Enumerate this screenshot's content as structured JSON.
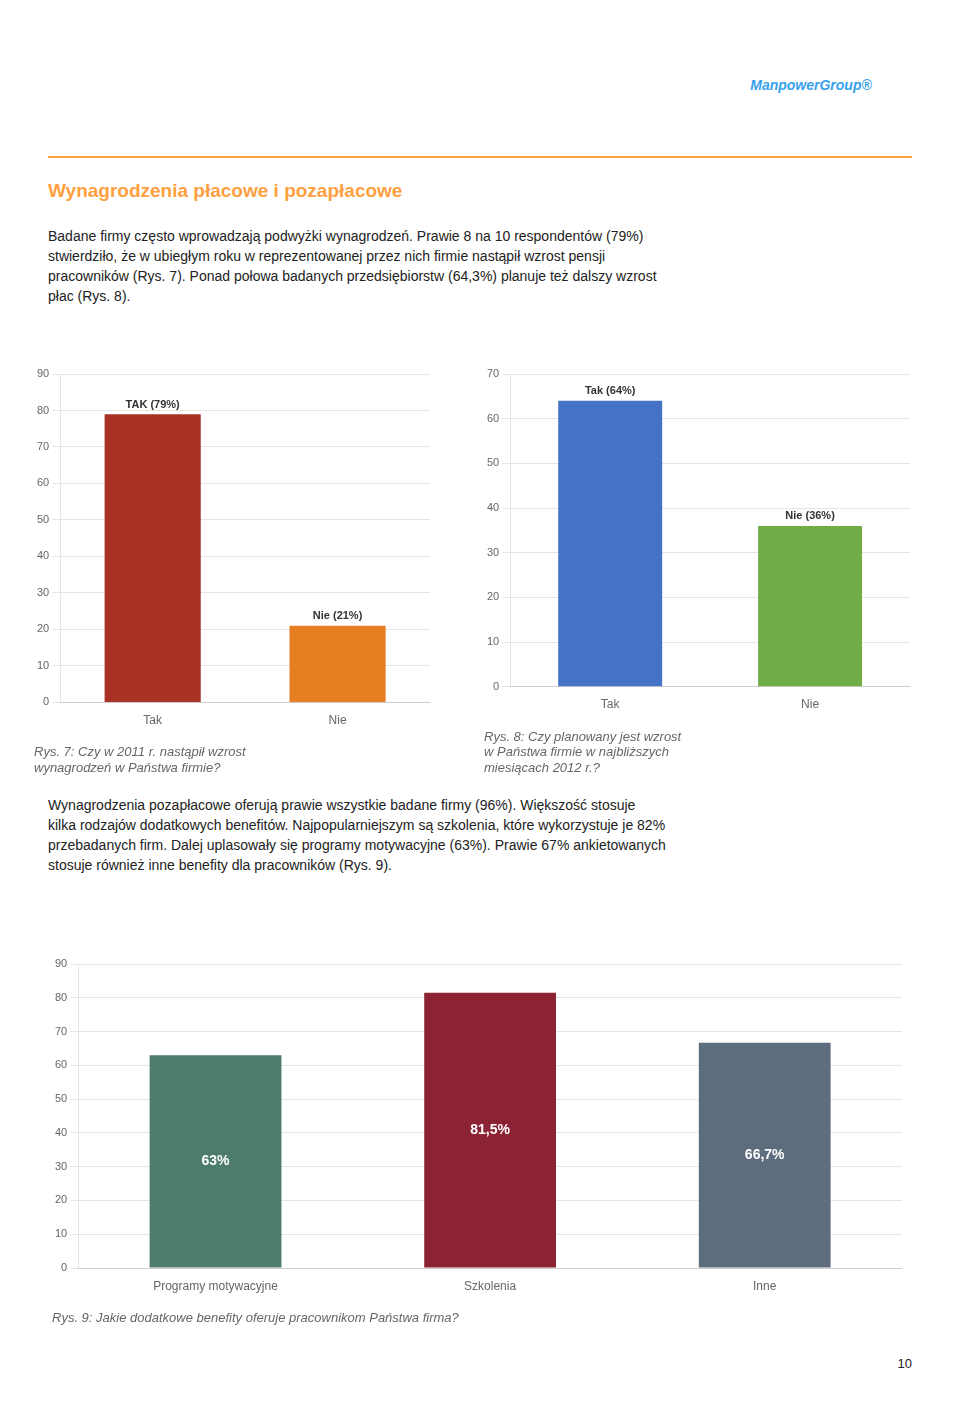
{
  "title": "Wynagrodzenia płacowe i pozapłacowe",
  "annotations": [
    "ManpowerGroup®",
    "Badane firmy często wprowadzają podwyżki wynagrodzeń. Prawie 8 na 10 respondentów (79%)\nstwierdziło, że w ubiegłym roku w reprezentowanej przez nich firmie nastąpił wzrost pensji\npracowników (Rys. 7). Ponad połowa badanych przedsiębiorstw (64,3%) planuje też dalszy wzrost\npłac (Rys. 8).",
    "Wynagrodzenia pozapłacowe oferują prawie wszystkie badane firmy (96%). Większość stosuje\nkilka rodzajów dodatkowych benefitów. Najpopularniejszym są szkolenia, które wykorzystuje je 82%\nprzebadanych firm. Dalej uplasowały się programy motywacyjne (63%). Prawie 67% ankietowanych\nstosuje również inne benefity dla pracowników (Rys. 9).",
    "10"
  ],
  "chart_data": [
    {
      "type": "bar",
      "title": "Rys. 7: Czy w 2011 r. nastąpił wzrost\nwynagrodzeń w Państwa firmie?",
      "categories": [
        "Tak",
        "Nie"
      ],
      "values": [
        79,
        21
      ],
      "value_labels": [
        "TAK (79%)",
        "Nie (21%)"
      ],
      "colors": [
        "#A93226",
        "#E67E22"
      ],
      "ylim": [
        0,
        90
      ],
      "yticks": [
        0,
        10,
        20,
        30,
        40,
        50,
        60,
        70,
        80,
        90
      ],
      "grid": true,
      "data_labels": true
    },
    {
      "type": "bar",
      "title": "Rys. 8: Czy planowany jest wzrost\nw Państwa firmie w najbliższych\nmiesiącach 2012 r.?",
      "categories": [
        "Tak",
        "Nie"
      ],
      "values": [
        64,
        36
      ],
      "value_labels": [
        "Tak (64%)",
        "Nie (36%)"
      ],
      "colors": [
        "#4472C4",
        "#70AD47"
      ],
      "ylim": [
        0,
        70
      ],
      "yticks": [
        0,
        10,
        20,
        30,
        40,
        50,
        60,
        70
      ],
      "grid": true,
      "data_labels": true
    },
    {
      "type": "bar",
      "title": "Rys. 9: Jakie dodatkowe benefity oferuje pracownikom Państwa firma?",
      "categories": [
        "Programy motywacyjne",
        "Szkolenia",
        "Inne"
      ],
      "values": [
        63,
        81.5,
        66.7
      ],
      "value_labels": [
        "63%",
        "81,5%",
        "66,7%"
      ],
      "colors": [
        "#4D7C6F",
        "#8B2335",
        "#5D6D7E"
      ],
      "ylim": [
        0,
        90
      ],
      "yticks": [
        0,
        10,
        20,
        30,
        40,
        50,
        60,
        70,
        80,
        90
      ],
      "grid": true,
      "data_labels": true
    }
  ]
}
